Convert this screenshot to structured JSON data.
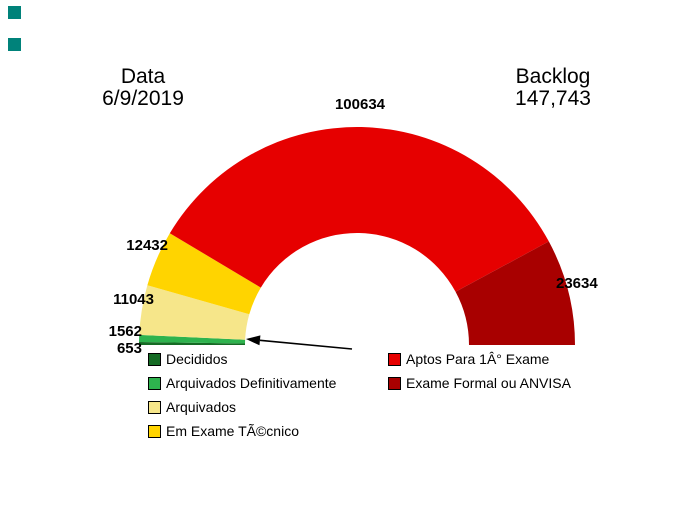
{
  "header": {
    "date_label": "Data",
    "date_value": "6/9/2019",
    "backlog_label": "Backlog",
    "backlog_value": "147,743"
  },
  "decor": {
    "corner_square_color": "#00827a"
  },
  "chart_data": {
    "type": "pie",
    "variant": "half-donut-gauge",
    "title": "",
    "total_shown": "147,743",
    "sum_of_segments": 149958,
    "layout": "semicircle, starts at left baseline, sweeps clockwise over the top to right baseline; value labels outside arc; legend in two columns below",
    "segments": [
      {
        "label": "Decididos",
        "value": 653,
        "color": "#156b24"
      },
      {
        "label": "Arquivados Definitivamente",
        "value": 1562,
        "color": "#2eb34e"
      },
      {
        "label": "Arquivados",
        "value": 11043,
        "color": "#f6e68a"
      },
      {
        "label": "Em Exame TÃ©cnico",
        "value": 12432,
        "color": "#ffd400"
      },
      {
        "label": "Aptos Para 1Â° Exame",
        "value": 100634,
        "color": "#e60000"
      },
      {
        "label": "Exame Formal ou ANVISA",
        "value": 23634,
        "color": "#a80000"
      }
    ],
    "annotations": [
      {
        "type": "arrow",
        "points_at": "green segments (Decididos / Arquivados Definitivamente)"
      }
    ],
    "legend_columns": {
      "left_indices": [
        0,
        1,
        2,
        3
      ],
      "right_indices": [
        4,
        5
      ]
    }
  }
}
